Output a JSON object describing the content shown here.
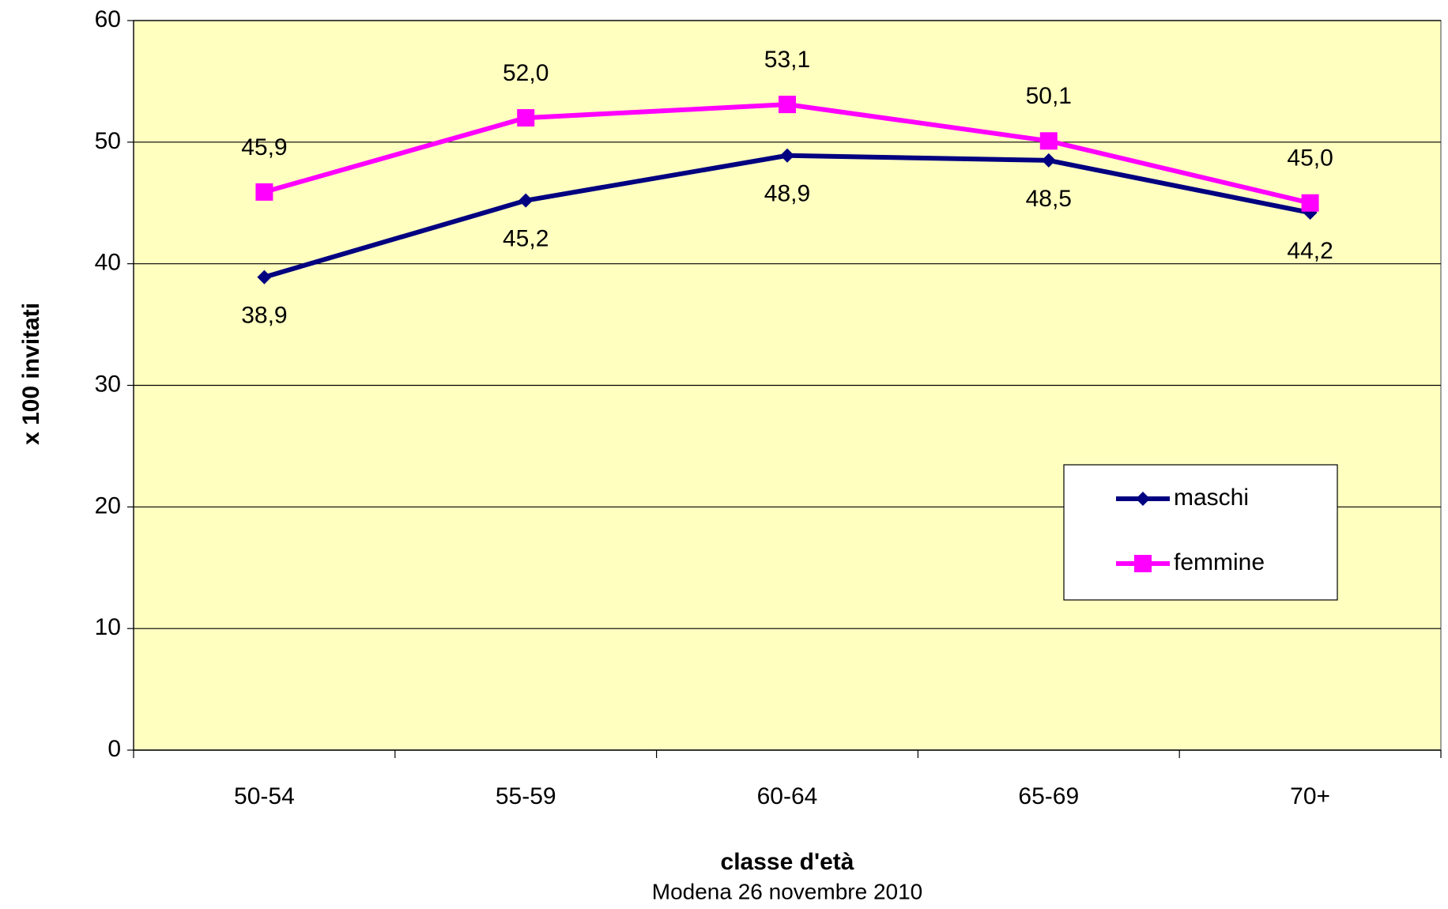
{
  "chart_data": {
    "type": "line",
    "x_label": "classe d'età",
    "y_label": "x 100 invitati",
    "footnote": "Modena 26 novembre 2010",
    "categories": [
      "50-54",
      "55-59",
      "60-64",
      "65-69",
      "70+"
    ],
    "series": [
      {
        "name": "maschi",
        "color": "#000080",
        "marker": "diamond",
        "values": [
          38.9,
          45.2,
          48.9,
          48.5,
          44.2
        ],
        "value_labels": [
          "38,9",
          "45,2",
          "48,9",
          "48,5",
          "44,2"
        ]
      },
      {
        "name": "femmine",
        "color": "#ff00ff",
        "marker": "square",
        "values": [
          45.9,
          52.0,
          53.1,
          50.1,
          45.0
        ],
        "value_labels": [
          "45,9",
          "52,0",
          "53,1",
          "50,1",
          "45,0"
        ]
      }
    ],
    "ylim": [
      0,
      60
    ],
    "yticks": [
      0,
      10,
      20,
      30,
      40,
      50,
      60
    ],
    "grid": true,
    "background": "#ffffc0"
  }
}
